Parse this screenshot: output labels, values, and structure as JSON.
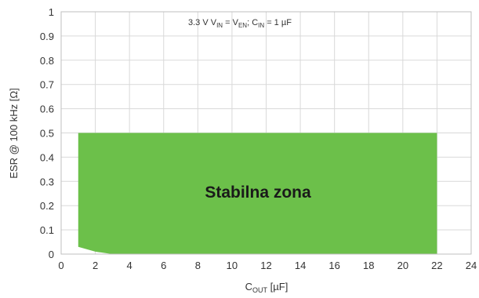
{
  "chart_data": {
    "type": "area",
    "xlabel": {
      "main": "C",
      "sub": "OUT",
      "unit": " [µF]"
    },
    "ylabel": "ESR @ 100 kHz [Ω]",
    "xlim": [
      0,
      24
    ],
    "ylim": [
      0,
      1
    ],
    "x_ticks": [
      "0",
      "2",
      "4",
      "6",
      "8",
      "10",
      "12",
      "14",
      "16",
      "18",
      "20",
      "22",
      "24"
    ],
    "y_ticks": [
      "0",
      "0.1",
      "0.2",
      "0.3",
      "0.4",
      "0.5",
      "0.6",
      "0.7",
      "0.8",
      "0.9",
      "1"
    ],
    "grid": true,
    "annotation": {
      "p1": "3.3 V  V",
      "s1": "IN",
      "p2": " = V",
      "s2": "EN",
      "p3": ";  C",
      "s3": "IN",
      "p4": " = 1 µF"
    },
    "region": {
      "label": "Stabilna zona",
      "color": "#6cc04a",
      "upper": [
        [
          1,
          0.5
        ],
        [
          22,
          0.5
        ]
      ],
      "lower": [
        [
          1,
          0.03
        ],
        [
          2,
          0.01
        ],
        [
          3,
          0.0
        ],
        [
          22,
          0.0
        ]
      ]
    }
  }
}
